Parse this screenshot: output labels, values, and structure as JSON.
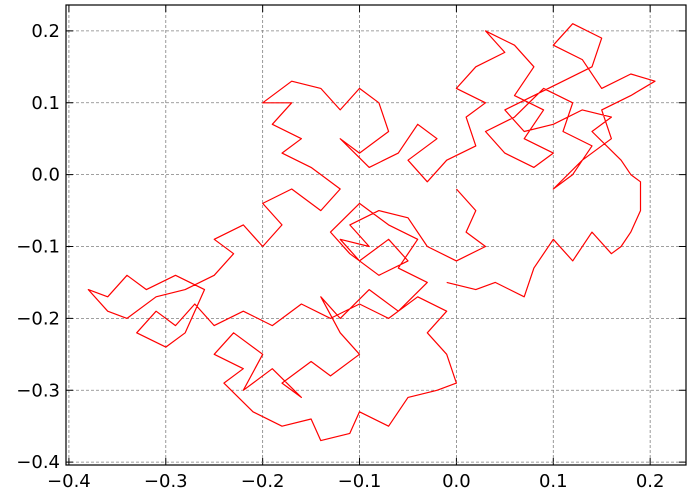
{
  "chart_data": {
    "type": "line",
    "color": "#ff0000",
    "grid": true,
    "xlim": [
      -0.403,
      0.237
    ],
    "ylim": [
      -0.404,
      0.236
    ],
    "xticks": [
      {
        "value": -0.4,
        "label": "−0.4"
      },
      {
        "value": -0.3,
        "label": "−0.3"
      },
      {
        "value": -0.2,
        "label": "−0.2"
      },
      {
        "value": -0.1,
        "label": "−0.1"
      },
      {
        "value": 0,
        "label": "0.0"
      },
      0.1,
      0.2
    ],
    "yticks": [
      {
        "value": -0.4,
        "label": "−0.4"
      },
      {
        "value": -0.3,
        "label": "−0.3"
      },
      {
        "value": -0.2,
        "label": "−0.2"
      },
      {
        "value": -0.1,
        "label": "−0.1"
      },
      {
        "value": 0,
        "label": "0.0"
      },
      0.1,
      0.2
    ],
    "x": [
      0.0,
      0.02,
      0.01,
      0.03,
      0.0,
      -0.03,
      -0.05,
      -0.08,
      -0.11,
      -0.09,
      -0.12,
      -0.1,
      -0.07,
      -0.05,
      -0.08,
      -0.11,
      -0.13,
      -0.1,
      -0.07,
      -0.04,
      -0.06,
      -0.03,
      -0.06,
      -0.09,
      -0.12,
      -0.14,
      -0.12,
      -0.1,
      -0.13,
      -0.15,
      -0.18,
      -0.16,
      -0.19,
      -0.22,
      -0.2,
      -0.23,
      -0.25,
      -0.22,
      -0.24,
      -0.21,
      -0.18,
      -0.15,
      -0.14,
      -0.11,
      -0.1,
      -0.07,
      -0.05,
      -0.02,
      0.0,
      -0.01,
      -0.03,
      -0.01,
      -0.04,
      -0.07,
      -0.1,
      -0.13,
      -0.16,
      -0.19,
      -0.22,
      -0.25,
      -0.27,
      -0.29,
      -0.31,
      -0.33,
      -0.3,
      -0.28,
      -0.26,
      -0.29,
      -0.32,
      -0.34,
      -0.36,
      -0.38,
      -0.36,
      -0.34,
      -0.31,
      -0.28,
      -0.25,
      -0.23,
      -0.25,
      -0.22,
      -0.2,
      -0.18,
      -0.2,
      -0.17,
      -0.14,
      -0.12,
      -0.15,
      -0.18,
      -0.16,
      -0.19,
      -0.17,
      -0.2,
      -0.17,
      -0.14,
      -0.12,
      -0.1,
      -0.08,
      -0.07,
      -0.1,
      -0.12,
      -0.09,
      -0.06,
      -0.04,
      -0.02,
      -0.05,
      -0.03,
      -0.01,
      0.02,
      0.01,
      0.03,
      0.0,
      0.02,
      0.05,
      0.03,
      0.06,
      0.08,
      0.06,
      0.09,
      0.07,
      0.1,
      0.08,
      0.05,
      0.03,
      0.06,
      0.09,
      0.12,
      0.11,
      0.14,
      0.12,
      0.1,
      0.13,
      0.16,
      0.15,
      0.18,
      0.205,
      0.18,
      0.15,
      0.13,
      0.1,
      0.12,
      0.15,
      0.14,
      0.11,
      0.08,
      0.05,
      0.07,
      0.1,
      0.13,
      0.16,
      0.14,
      0.17,
      0.18,
      0.19,
      0.19,
      0.18,
      0.17,
      0.16,
      0.14,
      0.12,
      0.1,
      0.08,
      0.07,
      0.04,
      0.02,
      -0.01
    ],
    "values": [
      -0.02,
      -0.05,
      -0.08,
      -0.1,
      -0.12,
      -0.1,
      -0.06,
      -0.05,
      -0.07,
      -0.1,
      -0.09,
      -0.12,
      -0.09,
      -0.12,
      -0.14,
      -0.11,
      -0.08,
      -0.04,
      -0.07,
      -0.09,
      -0.13,
      -0.15,
      -0.19,
      -0.16,
      -0.2,
      -0.17,
      -0.22,
      -0.25,
      -0.28,
      -0.26,
      -0.29,
      -0.31,
      -0.27,
      -0.3,
      -0.25,
      -0.22,
      -0.25,
      -0.27,
      -0.29,
      -0.33,
      -0.35,
      -0.34,
      -0.37,
      -0.36,
      -0.33,
      -0.35,
      -0.31,
      -0.3,
      -0.29,
      -0.25,
      -0.22,
      -0.19,
      -0.17,
      -0.2,
      -0.18,
      -0.2,
      -0.18,
      -0.21,
      -0.19,
      -0.21,
      -0.18,
      -0.21,
      -0.19,
      -0.22,
      -0.24,
      -0.22,
      -0.16,
      -0.14,
      -0.16,
      -0.14,
      -0.17,
      -0.16,
      -0.19,
      -0.2,
      -0.17,
      -0.16,
      -0.14,
      -0.11,
      -0.09,
      -0.07,
      -0.1,
      -0.07,
      -0.04,
      -0.02,
      -0.05,
      -0.02,
      0.01,
      0.03,
      0.05,
      0.07,
      0.1,
      0.1,
      0.13,
      0.12,
      0.09,
      0.12,
      0.1,
      0.06,
      0.03,
      0.05,
      0.01,
      0.03,
      0.07,
      0.05,
      0.02,
      -0.01,
      0.02,
      0.04,
      0.08,
      0.1,
      0.12,
      0.15,
      0.17,
      0.2,
      0.18,
      0.15,
      0.11,
      0.09,
      0.05,
      0.03,
      0.01,
      0.03,
      0.06,
      0.08,
      0.12,
      0.1,
      0.06,
      0.04,
      0.0,
      -0.02,
      0.02,
      0.05,
      0.09,
      0.11,
      0.13,
      0.14,
      0.12,
      0.16,
      0.18,
      0.21,
      0.19,
      0.15,
      0.13,
      0.11,
      0.09,
      0.06,
      0.07,
      0.09,
      0.08,
      0.06,
      0.02,
      0.0,
      -0.01,
      -0.05,
      -0.08,
      -0.1,
      -0.11,
      -0.08,
      -0.12,
      -0.09,
      -0.13,
      -0.17,
      -0.15,
      -0.16,
      -0.15
    ]
  }
}
